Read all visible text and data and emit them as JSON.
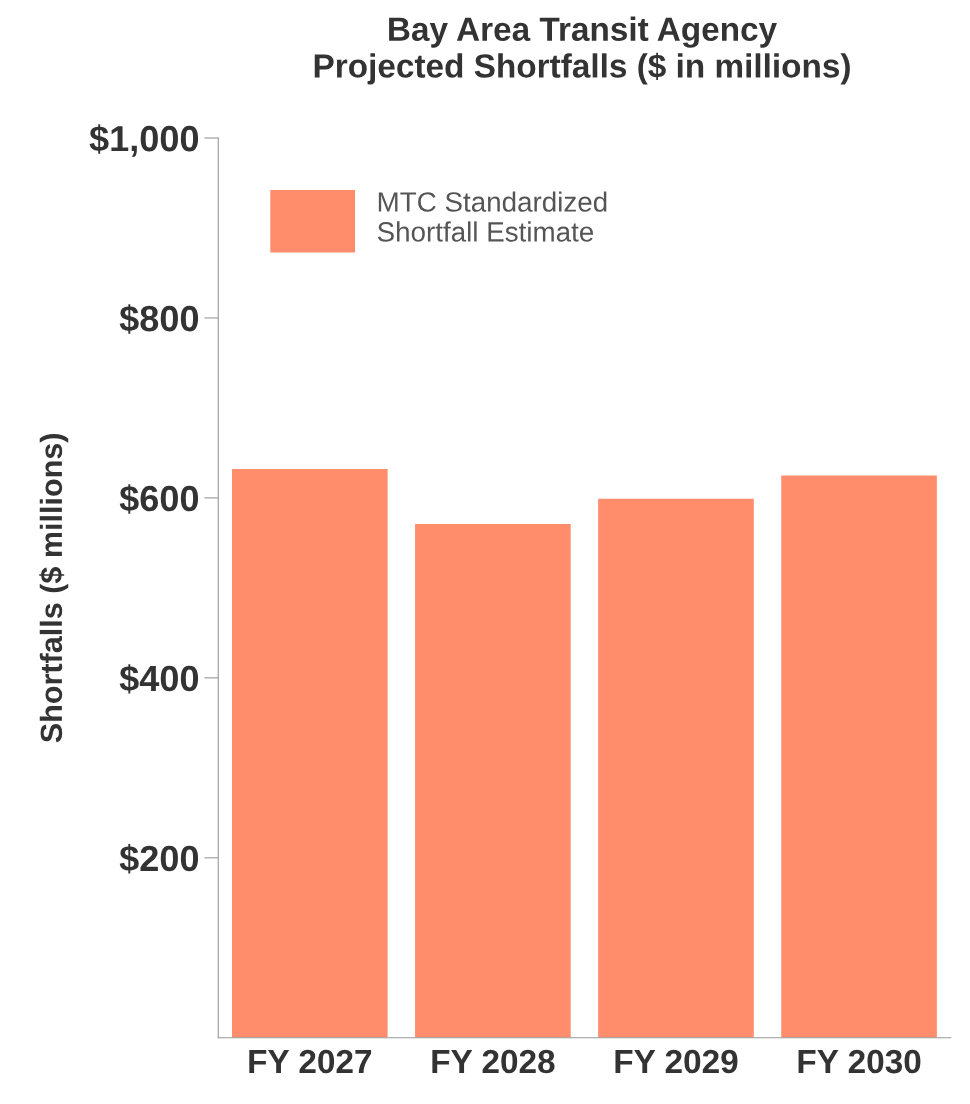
{
  "chart_data": {
    "type": "bar",
    "title": "Bay Area Transit Agency\nProjected Shortfalls ($ in millions)",
    "ylabel": "Shortfalls ($ millions)",
    "categories": [
      "FY 2027",
      "FY 2028",
      "FY 2029",
      "FY 2030"
    ],
    "series": [
      {
        "name": "MTC Standardized\nShortfall Estimate",
        "color": "#ff8c6b",
        "values": [
          632,
          571,
          599,
          625
        ]
      }
    ],
    "ylim": [
      0,
      1000
    ],
    "yticks": [
      {
        "value": 200,
        "label": "$200"
      },
      {
        "value": 400,
        "label": "$400"
      },
      {
        "value": 600,
        "label": "$600"
      },
      {
        "value": 800,
        "label": "$800"
      },
      {
        "value": 1000,
        "label": "$1,000"
      }
    ],
    "grid": false,
    "legend": "top left"
  }
}
